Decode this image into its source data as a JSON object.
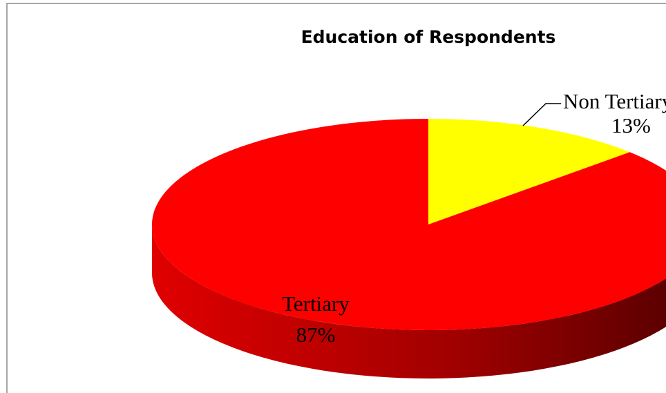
{
  "chart_data": {
    "type": "pie",
    "title": "Education of Respondents",
    "categories": [
      "Non Tertiary",
      "Tertiary"
    ],
    "values": [
      13,
      87
    ],
    "value_labels": [
      "13%",
      "87%"
    ],
    "colors": [
      "#ffff00",
      "#ff0000"
    ]
  }
}
